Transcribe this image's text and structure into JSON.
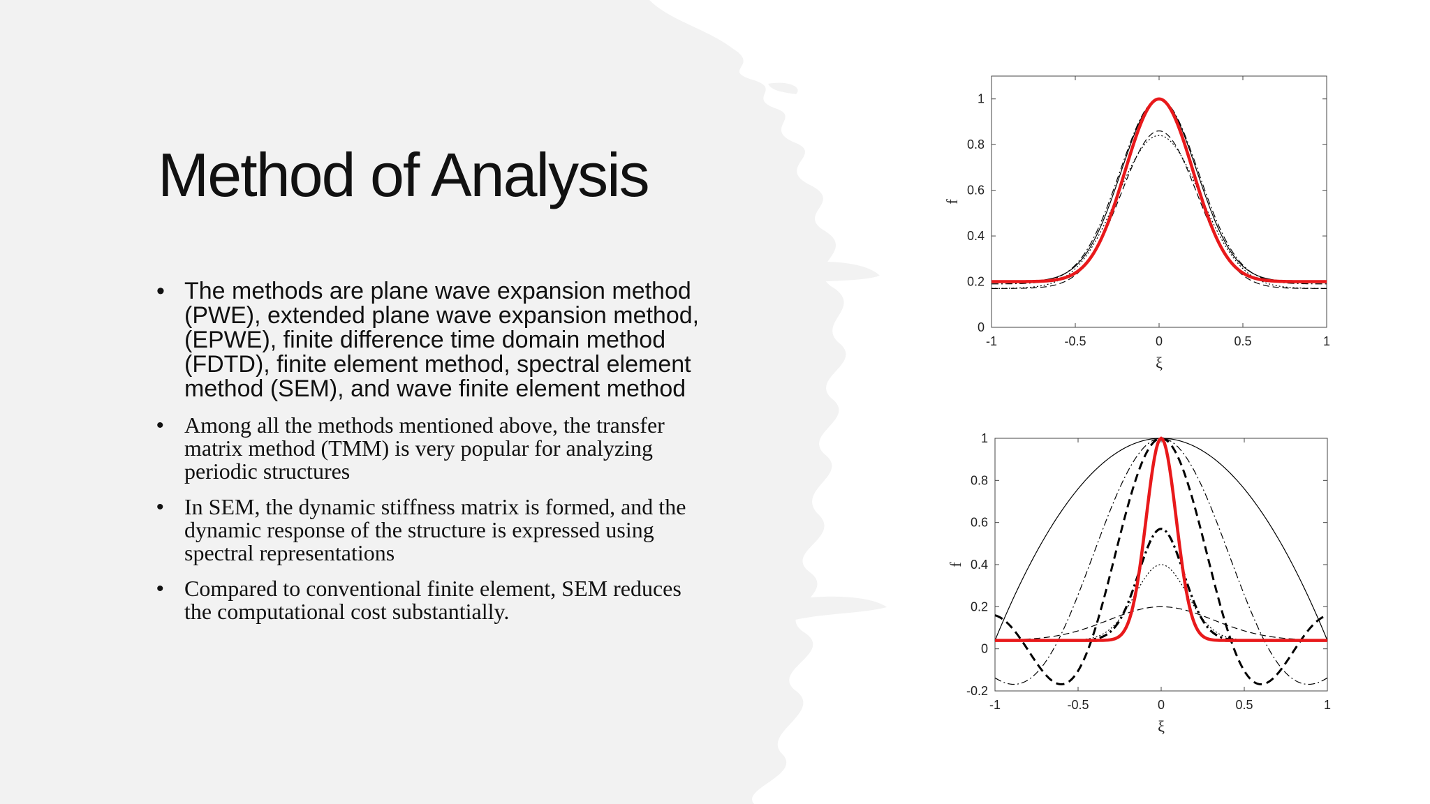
{
  "slide": {
    "title": "Method of Analysis",
    "bullets": [
      {
        "text": "The methods are plane wave expansion method (PWE), extended plane wave expansion method,(EPWE), finite difference time domain method (FDTD), finite element method, spectral element method (SEM), and wave finite element method",
        "font": "sans"
      },
      {
        "text": "Among all the methods mentioned above, the transfer matrix method (TMM) is very popular for analyzing periodic structures",
        "font": "serif"
      },
      {
        "text": "In SEM, the dynamic stiffness matrix is formed, and the dynamic response of the structure is expressed using spectral representations",
        "font": "serif"
      },
      {
        "text": "Compared to conventional finite element, SEM reduces the computational cost substantially.",
        "font": "serif"
      }
    ],
    "bullet_symbol": "•",
    "colors": {
      "title": "#111111",
      "background_panel": "#f2f2f2",
      "highlight_curve": "#e8191b"
    }
  },
  "chart_data": [
    {
      "type": "line",
      "xlabel": "ξ",
      "ylabel": "f",
      "xlim": [
        -1,
        1
      ],
      "ylim": [
        0,
        1.1
      ],
      "xticks": [
        "-1",
        "-0.5",
        "0",
        "0.5",
        "1"
      ],
      "yticks": [
        "0",
        "0.2",
        "0.4",
        "0.6",
        "0.8",
        "1"
      ],
      "grid": false,
      "series": [
        {
          "style": "red-thick",
          "peak": 1.0,
          "base": 0.2,
          "width": 0.45,
          "shape": "gaussian"
        },
        {
          "style": "dashdot-thick",
          "peak": 1.0,
          "base": 0.2,
          "width": 0.45,
          "shape": "gaussian"
        },
        {
          "style": "dashdot-thin",
          "peak": 1.0,
          "base": 0.19,
          "width": 0.52,
          "shape": "gaussian"
        },
        {
          "style": "solid-thin",
          "peak": 1.0,
          "base": 0.2,
          "width": 0.5,
          "shape": "gaussian"
        },
        {
          "style": "dashed-thin",
          "peak": 0.86,
          "base": 0.17,
          "width": 0.5,
          "shape": "gaussian"
        },
        {
          "style": "dotted-thin",
          "peak": 0.84,
          "base": 0.17,
          "width": 0.55,
          "shape": "gaussian"
        }
      ]
    },
    {
      "type": "line",
      "xlabel": "ξ",
      "ylabel": "f",
      "xlim": [
        -1,
        1
      ],
      "ylim": [
        -0.2,
        1
      ],
      "xticks": [
        "-1",
        "-0.5",
        "0",
        "0.5",
        "1"
      ],
      "yticks": [
        "-0.2",
        "0",
        "0.2",
        "0.4",
        "0.6",
        "0.8",
        "1"
      ],
      "grid": false,
      "series": [
        {
          "style": "solid-thin",
          "peak": 1.0,
          "base": 0.04,
          "width": 1.0,
          "shape": "parabola"
        },
        {
          "style": "dashdot-thin",
          "peak": 1.0,
          "base": 0.04,
          "width": 0.62,
          "shape": "sinc"
        },
        {
          "style": "dashed-thick",
          "peak": 1.0,
          "base": 0.04,
          "width": 0.42,
          "shape": "sinc"
        },
        {
          "style": "red-thick",
          "peak": 1.0,
          "base": 0.04,
          "width": 0.2,
          "shape": "gaussian"
        },
        {
          "style": "dashdot-thick",
          "peak": 0.57,
          "base": 0.04,
          "width": 0.3,
          "shape": "gaussian"
        },
        {
          "style": "dotted-thin",
          "peak": 0.4,
          "base": 0.04,
          "width": 0.35,
          "shape": "gaussian"
        },
        {
          "style": "dashed-thin",
          "peak": 0.2,
          "base": 0.04,
          "width": 0.7,
          "shape": "gaussian"
        }
      ]
    }
  ]
}
